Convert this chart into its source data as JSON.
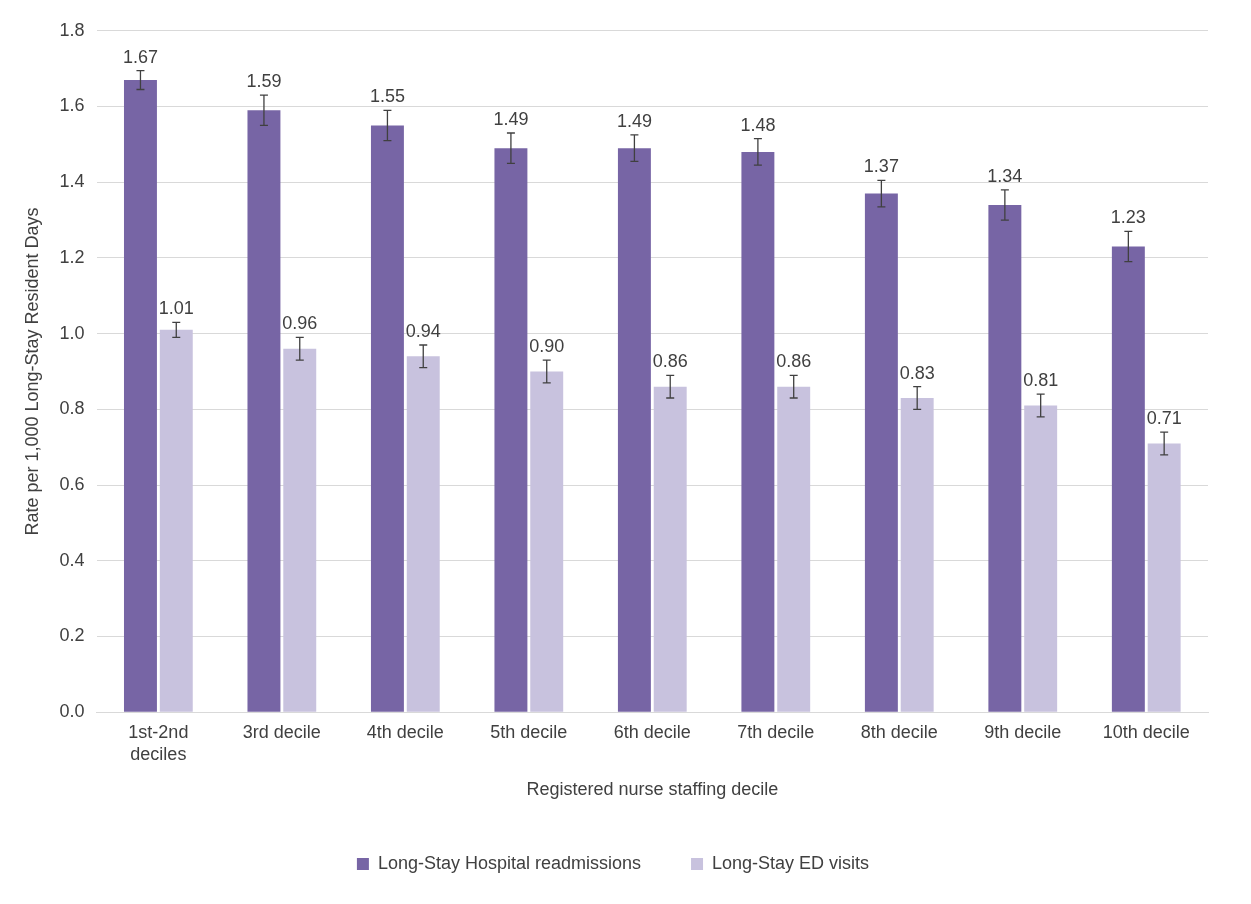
{
  "chart_data": {
    "type": "bar",
    "xlabel": "Registered nurse staffing decile",
    "ylabel": "Rate per 1,000 Long-Stay Resident Days",
    "categories": [
      "1st-2nd deciles",
      "3rd decile",
      "4th decile",
      "5th decile",
      "6th decile",
      "7th decile",
      "8th decile",
      "9th decile",
      "10th decile"
    ],
    "series": [
      {
        "name": "Long-Stay Hospital readmissions",
        "color": "#7765a5",
        "values": [
          1.67,
          1.59,
          1.55,
          1.49,
          1.49,
          1.48,
          1.37,
          1.34,
          1.23
        ],
        "errors": [
          0.025,
          0.04,
          0.04,
          0.04,
          0.035,
          0.035,
          0.035,
          0.04,
          0.04
        ],
        "value_labels": [
          "1.67",
          "1.59",
          "1.55",
          "1.49",
          "1.49",
          "1.48",
          "1.37",
          "1.34",
          "1.23"
        ]
      },
      {
        "name": "Long-Stay ED visits",
        "color": "#c8c2de",
        "values": [
          1.01,
          0.96,
          0.94,
          0.9,
          0.86,
          0.86,
          0.83,
          0.81,
          0.71
        ],
        "errors": [
          0.02,
          0.03,
          0.03,
          0.03,
          0.03,
          0.03,
          0.03,
          0.03,
          0.03
        ],
        "value_labels": [
          "1.01",
          "0.96",
          "0.94",
          "0.90",
          "0.86",
          "0.86",
          "0.83",
          "0.81",
          "0.71"
        ]
      }
    ],
    "ylim": [
      0,
      1.8
    ],
    "yticks": [
      {
        "value": 0,
        "label": "0.0"
      },
      {
        "value": 0.2,
        "label": "0.2"
      },
      {
        "value": 0.4,
        "label": "0.4"
      },
      {
        "value": 0.6,
        "label": "0.6"
      },
      {
        "value": 0.8,
        "label": "0.8"
      },
      {
        "value": 1,
        "label": "1.0"
      },
      {
        "value": 1.2,
        "label": "1.2"
      },
      {
        "value": 1.4,
        "label": "1.4"
      },
      {
        "value": 1.6,
        "label": "1.6"
      },
      {
        "value": 1.8,
        "label": "1.8"
      }
    ],
    "grid": "y",
    "legend": "bottom"
  }
}
